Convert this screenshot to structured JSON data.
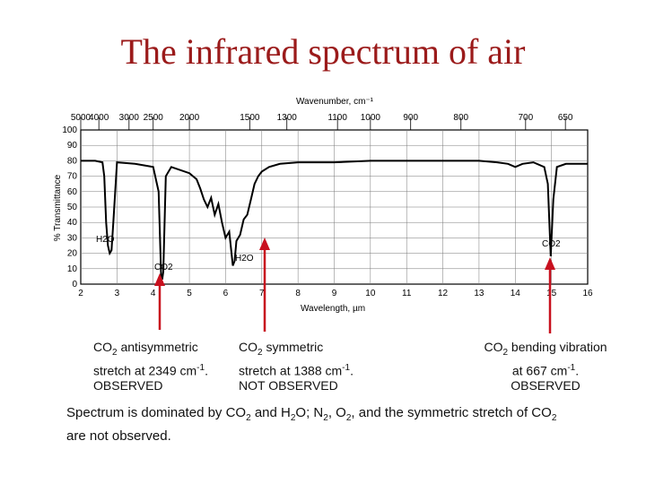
{
  "title": "The infrared spectrum of air",
  "chart_data": {
    "type": "line",
    "top_axis": {
      "label": "Wavenumber, cm⁻¹",
      "tick_labels": [
        "5000",
        "4000",
        "3000",
        "2500",
        "2000",
        "1500",
        "1300",
        "1100",
        "1000",
        "900",
        "800",
        "700",
        "650"
      ]
    },
    "xlabel": "Wavelength, µm",
    "x_ticks": [
      2,
      3,
      4,
      5,
      6,
      7,
      8,
      9,
      10,
      11,
      12,
      13,
      14,
      15,
      16
    ],
    "xlim": [
      2,
      16
    ],
    "ylabel": "% Transmittance",
    "ylim": [
      0,
      100
    ],
    "y_ticks": [
      0,
      10,
      20,
      30,
      40,
      50,
      60,
      70,
      80,
      90,
      100
    ],
    "series": [
      {
        "x": [
          2.0,
          2.4,
          2.6,
          2.65,
          2.7,
          2.75,
          2.8,
          2.85,
          2.9,
          3.0,
          3.5,
          4.0,
          4.15,
          4.22,
          4.25,
          4.28,
          4.35,
          4.5,
          5.0,
          5.2,
          5.3,
          5.4,
          5.5,
          5.6,
          5.7,
          5.8,
          5.9,
          6.0,
          6.1,
          6.2,
          6.25,
          6.3,
          6.4,
          6.5,
          6.6,
          6.7,
          6.8,
          6.9,
          7.0,
          7.2,
          7.5,
          8.0,
          9.0,
          10.0,
          11.0,
          12.0,
          13.0,
          13.5,
          13.8,
          14.0,
          14.2,
          14.5,
          14.8,
          14.9,
          14.98,
          15.05,
          15.15,
          15.4,
          16.0
        ],
        "y": [
          80,
          80,
          79,
          70,
          40,
          25,
          20,
          22,
          40,
          79,
          78,
          76,
          60,
          5,
          3,
          8,
          70,
          76,
          72,
          68,
          62,
          55,
          50,
          56,
          45,
          52,
          40,
          30,
          34,
          12,
          15,
          28,
          32,
          42,
          45,
          55,
          65,
          70,
          73,
          76,
          78,
          79,
          79,
          80,
          80,
          80,
          80,
          79,
          78,
          76,
          78,
          79,
          76,
          65,
          18,
          55,
          76,
          78,
          78
        ]
      }
    ]
  },
  "annotations": {
    "h2o_left": "H2O",
    "co2_asym": "CO2",
    "h2o_mid": "H2O",
    "co2_bend": "CO2"
  },
  "captions": {
    "c1_line1_pre": "CO",
    "c1_line1_sub": "2",
    "c1_line1_post": " antisymmetric",
    "c1_line2": "stretch at 2349 cm",
    "c1_line2_sup": "-1",
    "c1_line2_end": ".",
    "c1_line3": "OBSERVED",
    "c2_line1_pre": "CO",
    "c2_line1_sub": "2",
    "c2_line1_post": " symmetric",
    "c2_line2": "stretch at 1388 cm",
    "c2_line2_sup": "-1",
    "c2_line2_end": ".",
    "c2_line3": "NOT OBSERVED",
    "c3_line1_pre": "CO",
    "c3_line1_sub": "2",
    "c3_line1_post": " bending vibration",
    "c3_line2": "at 667 cm",
    "c3_line2_sup": "-1",
    "c3_line2_end": ".",
    "c3_line3": "OBSERVED"
  },
  "summary": {
    "p1": "Spectrum is dominated by CO",
    "s1": "2",
    "p2": " and H",
    "s2": "2",
    "p3": "O; N",
    "s3": "2",
    "p4": ", O",
    "s4": "2",
    "p5": ", and the symmetric stretch of CO",
    "s5": "2",
    "p6": "are not observed."
  },
  "colors": {
    "title": "#9b1b1b",
    "arrow": "#c8101e",
    "line": "#000000"
  }
}
